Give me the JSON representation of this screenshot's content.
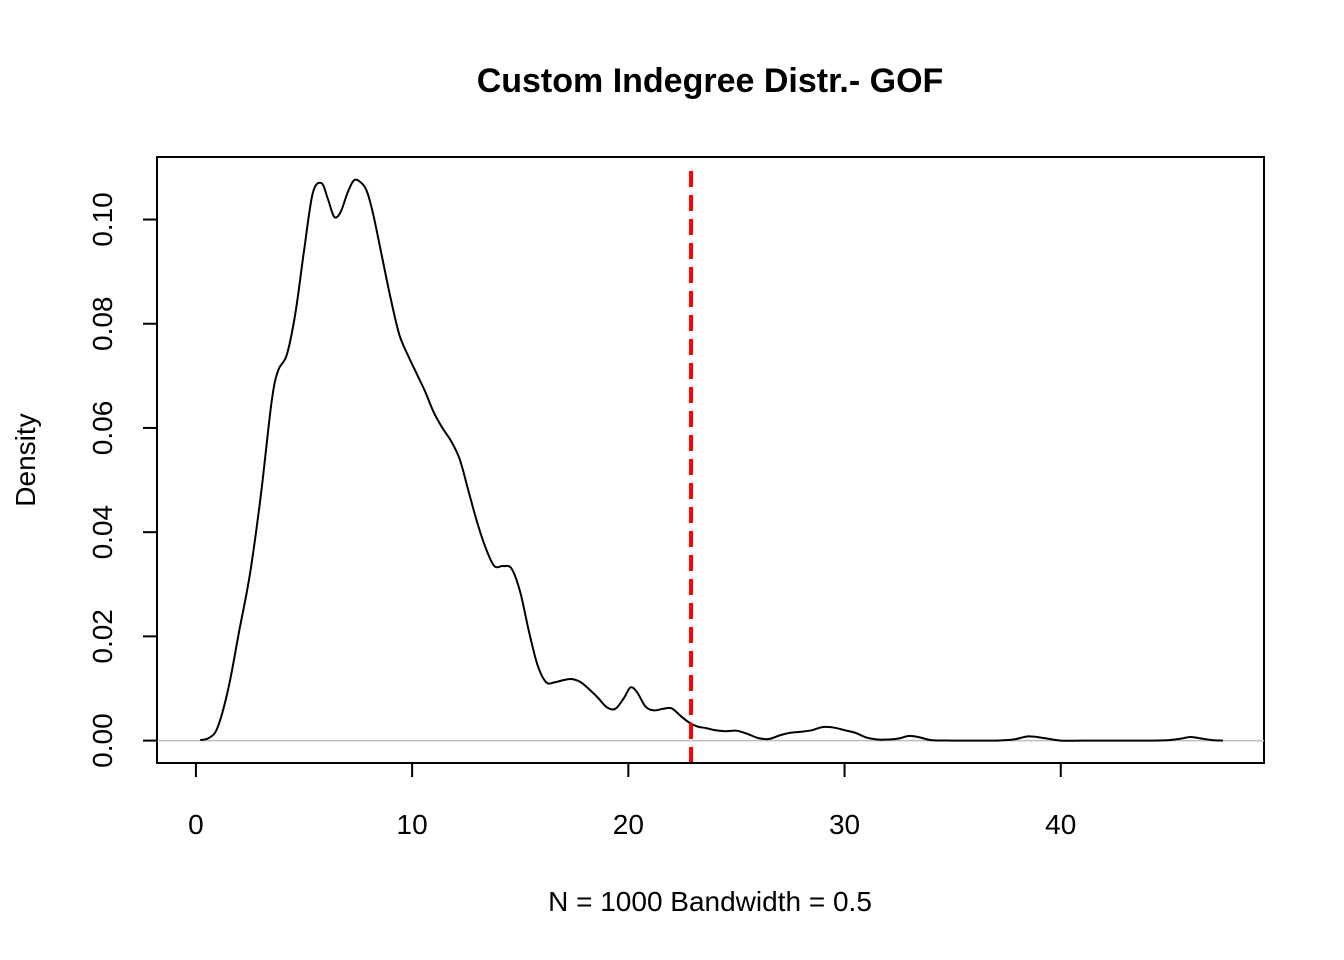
{
  "chart_data": {
    "type": "line",
    "title": "Custom Indegree Distr.- GOF",
    "xlabel": "N = 1000   Bandwidth = 0.5",
    "ylabel": "Density",
    "xlim": [
      -1.8,
      49.4
    ],
    "ylim": [
      -0.0043,
      0.112
    ],
    "x_ticks": [
      0,
      10,
      20,
      30,
      40
    ],
    "x_tick_labels": [
      "0",
      "10",
      "20",
      "30",
      "40"
    ],
    "y_ticks": [
      0.0,
      0.02,
      0.04,
      0.06,
      0.08,
      0.1
    ],
    "y_tick_labels": [
      "0.00",
      "0.02",
      "0.04",
      "0.06",
      "0.08",
      "0.10"
    ],
    "grid": false,
    "baseline": {
      "y": 0,
      "color": "#bebebe"
    },
    "reference_line": {
      "x": 22.9,
      "color": "#ff0000",
      "style": "dashed"
    },
    "series": [
      {
        "color": "#000000",
        "x": [
          0.2,
          0.6,
          1.0,
          1.5,
          2.0,
          2.5,
          3.0,
          3.5,
          3.8,
          4.2,
          4.6,
          5.0,
          5.4,
          5.8,
          6.1,
          6.4,
          6.7,
          7.0,
          7.3,
          7.6,
          7.9,
          8.2,
          8.6,
          9.0,
          9.4,
          9.8,
          10.2,
          10.6,
          11.0,
          11.4,
          11.8,
          12.2,
          12.6,
          13.0,
          13.4,
          13.8,
          14.2,
          14.6,
          15.0,
          15.4,
          15.8,
          16.2,
          16.6,
          17.0,
          17.4,
          17.8,
          18.2,
          18.6,
          19.0,
          19.4,
          19.8,
          20.1,
          20.4,
          20.8,
          21.2,
          21.6,
          22.0,
          22.4,
          22.8,
          23.2,
          23.6,
          24.0,
          24.5,
          25.0,
          25.5,
          26.0,
          26.5,
          27.0,
          27.5,
          28.0,
          28.5,
          29.0,
          29.5,
          30.0,
          30.5,
          31.0,
          31.5,
          32.0,
          32.5,
          33.0,
          33.5,
          34.0,
          35.0,
          36.0,
          37.0,
          37.8,
          38.5,
          39.2,
          40.0,
          41.0,
          42.0,
          43.0,
          44.0,
          45.0,
          45.6,
          46.0,
          46.5,
          47.0,
          47.5
        ],
        "y": [
          0.0001,
          0.0005,
          0.0025,
          0.01,
          0.021,
          0.032,
          0.047,
          0.065,
          0.071,
          0.074,
          0.082,
          0.094,
          0.105,
          0.107,
          0.104,
          0.1005,
          0.1015,
          0.105,
          0.1075,
          0.1072,
          0.1055,
          0.101,
          0.093,
          0.085,
          0.078,
          0.074,
          0.0705,
          0.067,
          0.063,
          0.06,
          0.0575,
          0.054,
          0.048,
          0.042,
          0.037,
          0.0335,
          0.0335,
          0.033,
          0.0285,
          0.021,
          0.0145,
          0.0112,
          0.0112,
          0.0116,
          0.0118,
          0.0112,
          0.0098,
          0.0082,
          0.0064,
          0.0061,
          0.0082,
          0.0102,
          0.0093,
          0.0065,
          0.0058,
          0.0061,
          0.0062,
          0.0048,
          0.0035,
          0.0027,
          0.0024,
          0.002,
          0.0018,
          0.0019,
          0.0013,
          0.0005,
          0.0003,
          0.001,
          0.0015,
          0.0017,
          0.002,
          0.0026,
          0.0025,
          0.002,
          0.0015,
          0.0006,
          0.0002,
          0.0002,
          0.0004,
          0.0009,
          0.0006,
          0.0001,
          0.0,
          0.0,
          0.0,
          0.0002,
          0.0008,
          0.0005,
          0.0,
          0.0,
          0.0,
          0.0,
          0.0,
          0.0001,
          0.0004,
          0.0007,
          0.0004,
          0.0001,
          0.0
        ]
      }
    ]
  }
}
